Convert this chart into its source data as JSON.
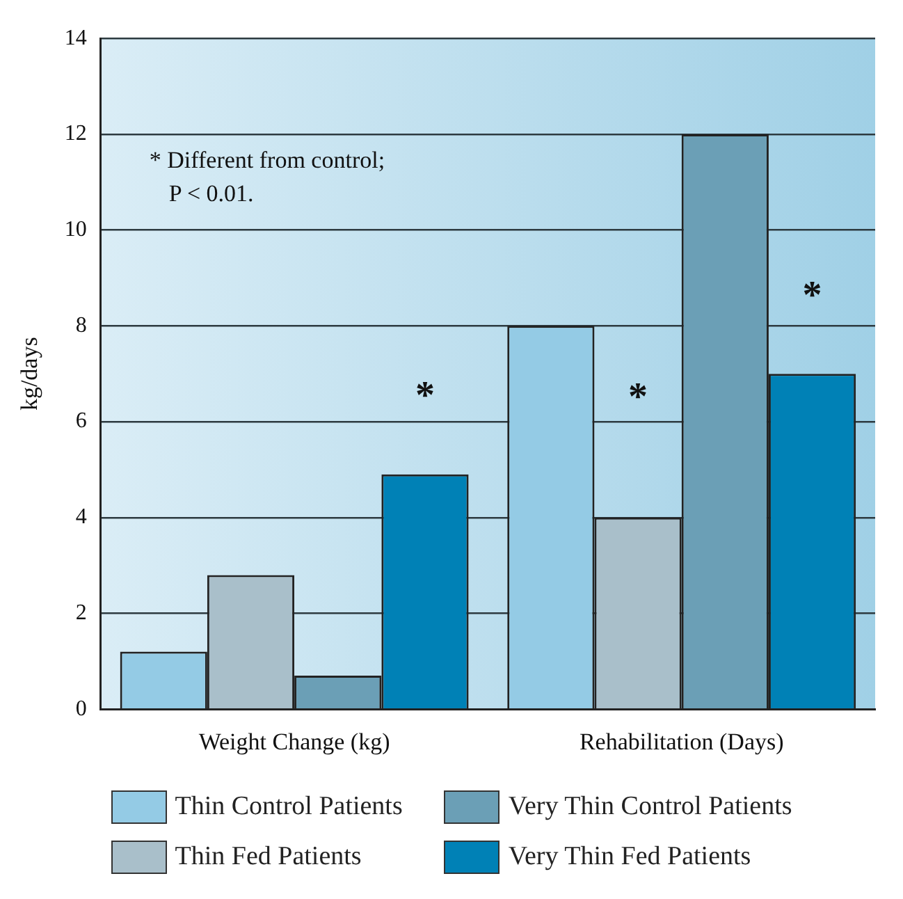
{
  "chart_data": {
    "type": "bar",
    "ylabel": "kg/days",
    "categories": [
      "Weight Change (kg)",
      "Rehabilitation (Days)"
    ],
    "series": [
      {
        "name": "Thin Control Patients",
        "color": "#94cbe5",
        "values": [
          1.2,
          8
        ]
      },
      {
        "name": "Thin Fed Patients",
        "color": "#a9bfca",
        "values": [
          2.8,
          4
        ]
      },
      {
        "name": "Very Thin Control Patients",
        "color": "#6b9fb6",
        "values": [
          0.7,
          12
        ]
      },
      {
        "name": "Very Thin Fed Patients",
        "color": "#0081b6",
        "values": [
          4.9,
          7
        ]
      }
    ],
    "ylim": [
      0,
      14
    ],
    "yticks": [
      0,
      2,
      4,
      6,
      8,
      10,
      12,
      14
    ],
    "grid": "y",
    "legend": "bottom",
    "annotations": [
      "* Different from control; P < 0.01.",
      "*",
      "*",
      "*"
    ]
  }
}
